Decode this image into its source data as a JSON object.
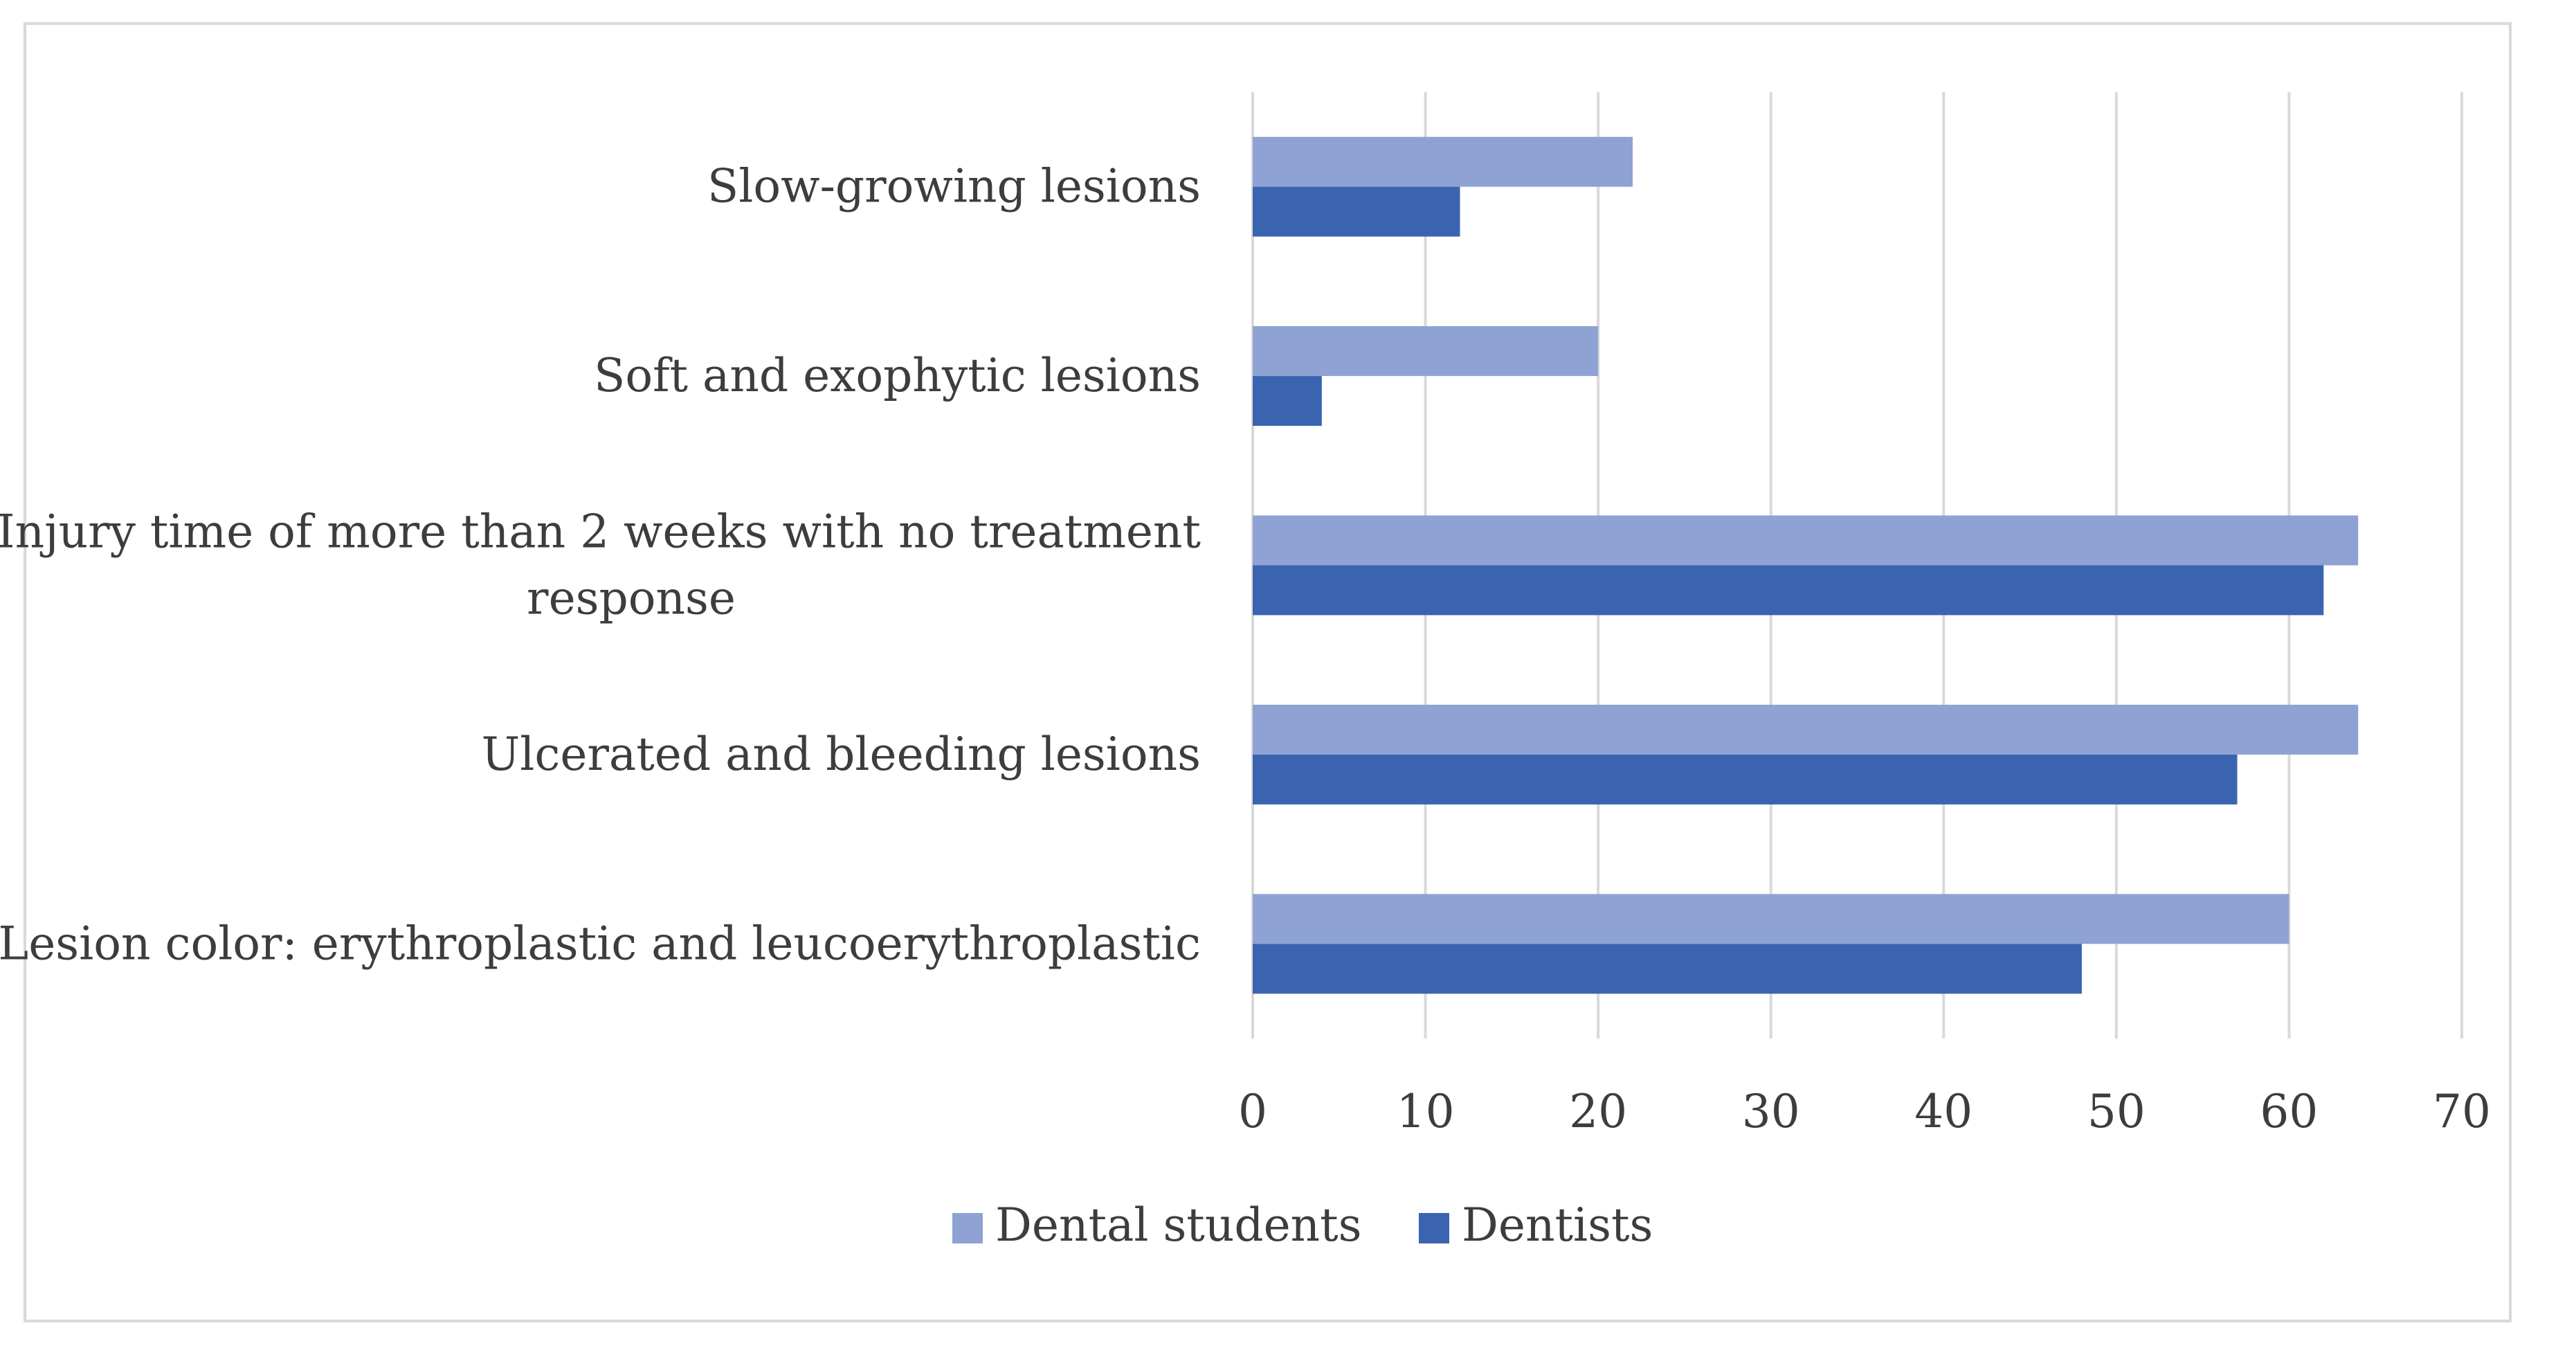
{
  "chart_data": {
    "type": "bar",
    "orientation": "horizontal",
    "title": "",
    "xlabel": "",
    "ylabel": "",
    "categories": [
      [
        "Slow-growing lesions"
      ],
      [
        "Soft and exophytic lesions"
      ],
      [
        "Injury time of more than 2 weeks with no treatment",
        "response"
      ],
      [
        "Ulcerated and bleeding lesions"
      ],
      [
        "Lesion color: erythroplastic and leucoerythroplastic"
      ]
    ],
    "series": [
      {
        "name": "Dental students",
        "color": "#8FA2D4",
        "values": [
          22,
          20,
          64,
          64,
          60
        ]
      },
      {
        "name": "Dentists",
        "color": "#3A64B0",
        "values": [
          12,
          4,
          62,
          57,
          48
        ]
      }
    ],
    "xlim": [
      0,
      70
    ],
    "xticks": [
      "0",
      "10",
      "20",
      "30",
      "40",
      "50",
      "60",
      "70"
    ],
    "grid": true,
    "legend": "bottom-center"
  }
}
